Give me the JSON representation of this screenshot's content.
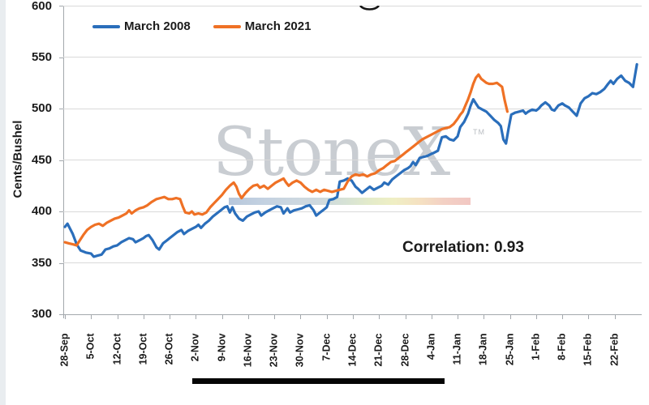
{
  "watermark": {
    "text": "StoneX",
    "tm": "TM"
  },
  "chart_data": {
    "type": "line",
    "title": "",
    "xlabel": "",
    "ylabel": "Cents/Bushel",
    "ylim": [
      300,
      600
    ],
    "y_ticks": [
      600,
      550,
      500,
      450,
      400,
      350,
      300
    ],
    "grid": true,
    "legend_position": "top-left",
    "annotation": "Correlation: 0.93",
    "x_unit": "weeks from 28-Sep (daily points)",
    "x_tick_labels": [
      "28-Sep",
      "5-Oct",
      "12-Oct",
      "19-Oct",
      "26-Oct",
      "2-Nov",
      "9-Nov",
      "16-Nov",
      "23-Nov",
      "30-Nov",
      "7-Dec",
      "14-Dec",
      "21-Dec",
      "28-Dec",
      "4-Jan",
      "11-Jan",
      "18-Jan",
      "25-Jan",
      "1-Feb",
      "8-Feb",
      "15-Feb",
      "22-Feb"
    ],
    "series": [
      {
        "name": "March 2008",
        "color": "#2a6ebb",
        "points": [
          [
            0,
            385
          ],
          [
            0.1,
            388
          ],
          [
            0.2,
            383
          ],
          [
            0.3,
            378
          ],
          [
            0.45,
            368
          ],
          [
            0.6,
            362
          ],
          [
            0.8,
            360
          ],
          [
            1,
            359
          ],
          [
            1.1,
            356
          ],
          [
            1.25,
            357
          ],
          [
            1.4,
            358
          ],
          [
            1.55,
            363
          ],
          [
            1.7,
            364
          ],
          [
            1.85,
            366
          ],
          [
            2,
            367
          ],
          [
            2.15,
            370
          ],
          [
            2.3,
            372
          ],
          [
            2.45,
            374
          ],
          [
            2.6,
            373
          ],
          [
            2.7,
            370
          ],
          [
            2.85,
            372
          ],
          [
            3,
            374
          ],
          [
            3.1,
            376
          ],
          [
            3.2,
            377
          ],
          [
            3.35,
            372
          ],
          [
            3.5,
            365
          ],
          [
            3.6,
            363
          ],
          [
            3.75,
            369
          ],
          [
            3.9,
            372
          ],
          [
            4,
            374
          ],
          [
            4.15,
            377
          ],
          [
            4.3,
            380
          ],
          [
            4.45,
            382
          ],
          [
            4.55,
            378
          ],
          [
            4.7,
            381
          ],
          [
            4.85,
            383
          ],
          [
            5,
            385
          ],
          [
            5.1,
            387
          ],
          [
            5.2,
            384
          ],
          [
            5.35,
            388
          ],
          [
            5.5,
            391
          ],
          [
            5.65,
            395
          ],
          [
            5.8,
            398
          ],
          [
            5.95,
            401
          ],
          [
            6.1,
            404
          ],
          [
            6.2,
            405
          ],
          [
            6.3,
            399
          ],
          [
            6.4,
            404
          ],
          [
            6.5,
            398
          ],
          [
            6.65,
            393
          ],
          [
            6.8,
            391
          ],
          [
            6.95,
            395
          ],
          [
            7.1,
            397
          ],
          [
            7.25,
            399
          ],
          [
            7.4,
            400
          ],
          [
            7.5,
            396
          ],
          [
            7.65,
            399
          ],
          [
            7.8,
            401
          ],
          [
            7.95,
            403
          ],
          [
            8.1,
            405
          ],
          [
            8.25,
            404
          ],
          [
            8.35,
            398
          ],
          [
            8.5,
            403
          ],
          [
            8.6,
            399
          ],
          [
            8.75,
            401
          ],
          [
            8.9,
            402
          ],
          [
            9.05,
            403
          ],
          [
            9.2,
            405
          ],
          [
            9.35,
            406
          ],
          [
            9.5,
            401
          ],
          [
            9.6,
            396
          ],
          [
            9.75,
            399
          ],
          [
            9.9,
            402
          ],
          [
            10,
            404
          ],
          [
            10.1,
            411
          ],
          [
            10.25,
            412
          ],
          [
            10.4,
            414
          ],
          [
            10.5,
            429
          ],
          [
            10.65,
            430
          ],
          [
            10.8,
            432
          ],
          [
            10.95,
            430
          ],
          [
            11.1,
            424
          ],
          [
            11.2,
            422
          ],
          [
            11.35,
            418
          ],
          [
            11.5,
            421
          ],
          [
            11.65,
            424
          ],
          [
            11.8,
            421
          ],
          [
            11.95,
            423
          ],
          [
            12.1,
            425
          ],
          [
            12.2,
            428
          ],
          [
            12.35,
            426
          ],
          [
            12.5,
            431
          ],
          [
            12.65,
            434
          ],
          [
            12.8,
            437
          ],
          [
            12.95,
            440
          ],
          [
            13.1,
            442
          ],
          [
            13.2,
            444
          ],
          [
            13.3,
            448
          ],
          [
            13.4,
            445
          ],
          [
            13.55,
            452
          ],
          [
            13.7,
            453
          ],
          [
            13.85,
            454
          ],
          [
            14,
            456
          ],
          [
            14.1,
            457
          ],
          [
            14.25,
            459
          ],
          [
            14.4,
            472
          ],
          [
            14.55,
            473
          ],
          [
            14.7,
            470
          ],
          [
            14.85,
            469
          ],
          [
            15,
            473
          ],
          [
            15.1,
            482
          ],
          [
            15.25,
            487
          ],
          [
            15.4,
            495
          ],
          [
            15.5,
            503
          ],
          [
            15.6,
            509
          ],
          [
            15.7,
            505
          ],
          [
            15.8,
            501
          ],
          [
            15.95,
            499
          ],
          [
            16.1,
            497
          ],
          [
            16.25,
            493
          ],
          [
            16.4,
            489
          ],
          [
            16.55,
            486
          ],
          [
            16.65,
            483
          ],
          [
            16.75,
            470
          ],
          [
            16.85,
            466
          ],
          [
            16.95,
            481
          ],
          [
            17.05,
            494
          ],
          [
            17.2,
            496
          ],
          [
            17.35,
            497
          ],
          [
            17.5,
            498
          ],
          [
            17.6,
            495
          ],
          [
            17.7,
            497
          ],
          [
            17.85,
            499
          ],
          [
            18,
            498
          ],
          [
            18.1,
            500
          ],
          [
            18.2,
            503
          ],
          [
            18.35,
            506
          ],
          [
            18.5,
            503
          ],
          [
            18.6,
            499
          ],
          [
            18.7,
            498
          ],
          [
            18.85,
            503
          ],
          [
            19,
            505
          ],
          [
            19.1,
            503
          ],
          [
            19.25,
            501
          ],
          [
            19.4,
            497
          ],
          [
            19.55,
            493
          ],
          [
            19.7,
            505
          ],
          [
            19.85,
            510
          ],
          [
            20,
            512
          ],
          [
            20.15,
            515
          ],
          [
            20.3,
            514
          ],
          [
            20.45,
            516
          ],
          [
            20.6,
            519
          ],
          [
            20.75,
            524
          ],
          [
            20.85,
            527
          ],
          [
            20.95,
            524
          ],
          [
            21.1,
            529
          ],
          [
            21.25,
            532
          ],
          [
            21.4,
            527
          ],
          [
            21.55,
            525
          ],
          [
            21.7,
            521
          ],
          [
            21.85,
            543
          ]
        ]
      },
      {
        "name": "March 2021",
        "color": "#ef7125",
        "points": [
          [
            0,
            370
          ],
          [
            0.15,
            369
          ],
          [
            0.3,
            368
          ],
          [
            0.45,
            367
          ],
          [
            0.55,
            371
          ],
          [
            0.7,
            377
          ],
          [
            0.85,
            382
          ],
          [
            1,
            385
          ],
          [
            1.15,
            387
          ],
          [
            1.3,
            388
          ],
          [
            1.45,
            386
          ],
          [
            1.6,
            389
          ],
          [
            1.75,
            391
          ],
          [
            1.9,
            393
          ],
          [
            2.05,
            394
          ],
          [
            2.2,
            396
          ],
          [
            2.35,
            398
          ],
          [
            2.45,
            401
          ],
          [
            2.55,
            398
          ],
          [
            2.7,
            401
          ],
          [
            2.85,
            403
          ],
          [
            3,
            404
          ],
          [
            3.15,
            406
          ],
          [
            3.3,
            409
          ],
          [
            3.5,
            412
          ],
          [
            3.65,
            413
          ],
          [
            3.8,
            414
          ],
          [
            3.95,
            412
          ],
          [
            4.1,
            412
          ],
          [
            4.25,
            413
          ],
          [
            4.4,
            412
          ],
          [
            4.5,
            405
          ],
          [
            4.6,
            399
          ],
          [
            4.75,
            398
          ],
          [
            4.85,
            400
          ],
          [
            4.95,
            397
          ],
          [
            5.1,
            398
          ],
          [
            5.25,
            397
          ],
          [
            5.4,
            399
          ],
          [
            5.55,
            404
          ],
          [
            5.7,
            408
          ],
          [
            5.85,
            412
          ],
          [
            6,
            416
          ],
          [
            6.15,
            421
          ],
          [
            6.3,
            425
          ],
          [
            6.45,
            428
          ],
          [
            6.55,
            424
          ],
          [
            6.65,
            417
          ],
          [
            6.75,
            413
          ],
          [
            6.9,
            418
          ],
          [
            7.05,
            422
          ],
          [
            7.2,
            425
          ],
          [
            7.35,
            426
          ],
          [
            7.45,
            423
          ],
          [
            7.6,
            425
          ],
          [
            7.75,
            422
          ],
          [
            7.9,
            425
          ],
          [
            8.05,
            428
          ],
          [
            8.2,
            430
          ],
          [
            8.35,
            432
          ],
          [
            8.45,
            428
          ],
          [
            8.55,
            425
          ],
          [
            8.7,
            428
          ],
          [
            8.85,
            430
          ],
          [
            9,
            428
          ],
          [
            9.15,
            424
          ],
          [
            9.3,
            421
          ],
          [
            9.45,
            419
          ],
          [
            9.6,
            421
          ],
          [
            9.75,
            419
          ],
          [
            9.9,
            421
          ],
          [
            10.05,
            420
          ],
          [
            10.2,
            419
          ],
          [
            10.35,
            420
          ],
          [
            10.5,
            421
          ],
          [
            10.65,
            422
          ],
          [
            10.8,
            429
          ],
          [
            10.95,
            434
          ],
          [
            11.1,
            436
          ],
          [
            11.25,
            435
          ],
          [
            11.4,
            436
          ],
          [
            11.55,
            434
          ],
          [
            11.7,
            436
          ],
          [
            11.85,
            437
          ],
          [
            12,
            440
          ],
          [
            12.15,
            442
          ],
          [
            12.3,
            445
          ],
          [
            12.45,
            448
          ],
          [
            12.6,
            449
          ],
          [
            12.75,
            452
          ],
          [
            12.9,
            455
          ],
          [
            13.05,
            458
          ],
          [
            13.2,
            461
          ],
          [
            13.35,
            464
          ],
          [
            13.5,
            467
          ],
          [
            13.65,
            470
          ],
          [
            13.8,
            472
          ],
          [
            13.95,
            474
          ],
          [
            14.1,
            476
          ],
          [
            14.25,
            478
          ],
          [
            14.4,
            480
          ],
          [
            14.55,
            481
          ],
          [
            14.7,
            482
          ],
          [
            14.85,
            485
          ],
          [
            15,
            490
          ],
          [
            15.1,
            494
          ],
          [
            15.2,
            497
          ],
          [
            15.3,
            503
          ],
          [
            15.4,
            509
          ],
          [
            15.5,
            516
          ],
          [
            15.6,
            524
          ],
          [
            15.7,
            530
          ],
          [
            15.8,
            533
          ],
          [
            15.9,
            529
          ],
          [
            16,
            527
          ],
          [
            16.1,
            525
          ],
          [
            16.2,
            524
          ],
          [
            16.35,
            524
          ],
          [
            16.5,
            525
          ],
          [
            16.6,
            523
          ],
          [
            16.7,
            521
          ],
          [
            16.8,
            508
          ],
          [
            16.9,
            497
          ]
        ]
      }
    ]
  }
}
